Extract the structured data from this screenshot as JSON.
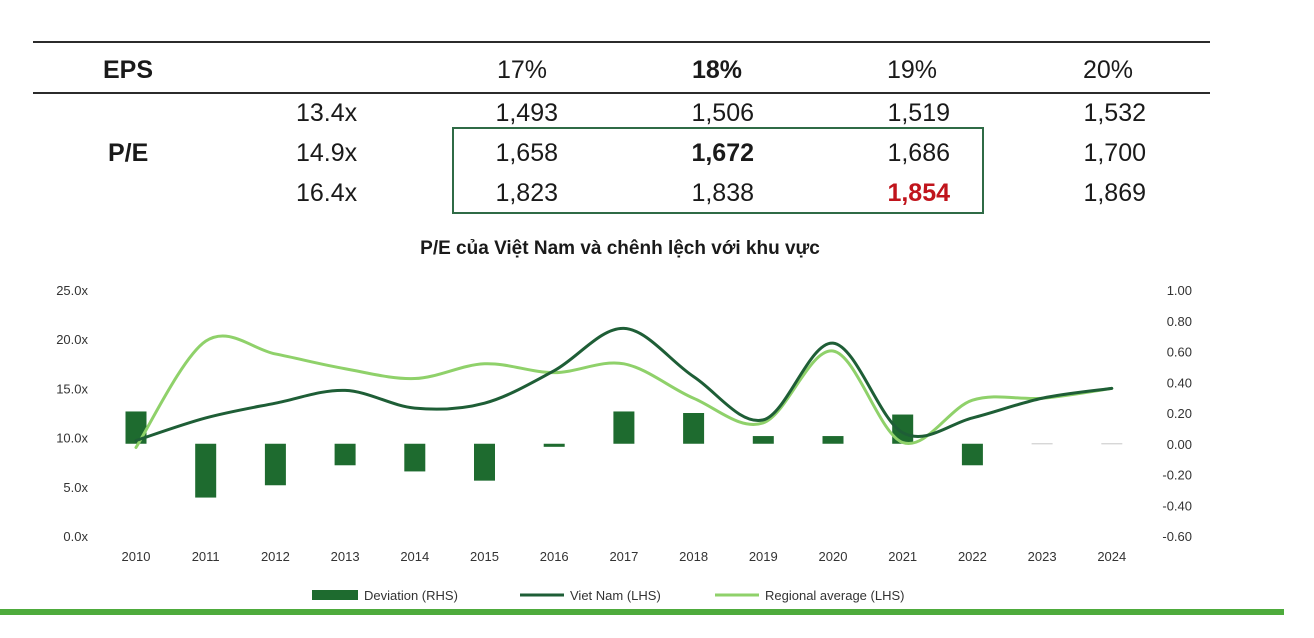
{
  "table": {
    "eps_label": "EPS",
    "pe_label": "P/E",
    "eps_headers": [
      "17%",
      "18%",
      "19%",
      "20%"
    ],
    "rows": [
      {
        "pe": "13.4x",
        "values": [
          "1,493",
          "1,506",
          "1,519",
          "1,532"
        ]
      },
      {
        "pe": "14.9x",
        "values": [
          "1,658",
          "1,672",
          "1,686",
          "1,700"
        ]
      },
      {
        "pe": "16.4x",
        "values": [
          "1,823",
          "1,838",
          "1,854",
          "1,869"
        ]
      }
    ]
  },
  "chart_data": {
    "type": "line",
    "title": "P/E của Việt Nam và chênh lệch với khu vực",
    "categories": [
      "2010",
      "2011",
      "2012",
      "2013",
      "2014",
      "2015",
      "2016",
      "2017",
      "2018",
      "2019",
      "2020",
      "2021",
      "2022",
      "2023",
      "2024"
    ],
    "left_axis": {
      "ticks": [
        "25.0x",
        "20.0x",
        "15.0x",
        "10.0x",
        "5.0x",
        "0.0x"
      ],
      "ylim": [
        0,
        25
      ]
    },
    "right_axis": {
      "ticks": [
        "1.00",
        "0.80",
        "0.60",
        "0.40",
        "0.20",
        "0.00",
        "-0.20",
        "-0.40",
        "-0.60"
      ],
      "ylim": [
        -0.6,
        1.0
      ]
    },
    "series": [
      {
        "name": "Deviation (RHS)",
        "kind": "bar",
        "axis": "right",
        "color": "#1e6b2f",
        "values": [
          0.21,
          -0.35,
          -0.27,
          -0.14,
          -0.18,
          -0.24,
          -0.02,
          0.21,
          0.2,
          0.05,
          0.05,
          0.19,
          -0.14,
          0.0,
          0.0
        ]
      },
      {
        "name": "Viet Nam (LHS)",
        "kind": "line",
        "axis": "left",
        "color": "#1e5e36",
        "values": [
          9.7,
          12.0,
          13.5,
          14.8,
          13.0,
          13.5,
          16.8,
          21.1,
          16.2,
          11.8,
          19.6,
          10.5,
          12.0,
          14.0,
          15.0
        ]
      },
      {
        "name": "Regional average (LHS)",
        "kind": "line",
        "axis": "left",
        "color": "#8fd16a",
        "values": [
          9.0,
          19.8,
          18.5,
          17.0,
          16.0,
          17.5,
          16.6,
          17.5,
          14.0,
          11.5,
          18.8,
          9.5,
          13.8,
          14.0,
          15.0
        ]
      }
    ]
  }
}
